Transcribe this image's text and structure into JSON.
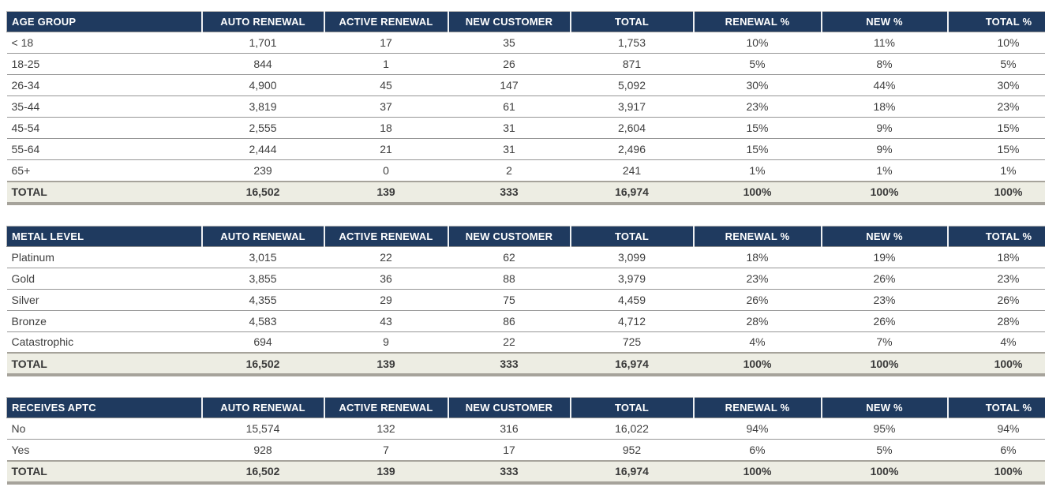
{
  "colors": {
    "header_bg": "#1F3A5F",
    "header_text": "#FFFFFF",
    "total_row_bg": "#EDEDE3",
    "total_row_border": "#A6A39B",
    "row_divider": "#969696",
    "body_text": "#3F3F3F"
  },
  "tables": [
    {
      "id": "age-group",
      "header": [
        "AGE GROUP",
        "AUTO RENEWAL",
        "ACTIVE RENEWAL",
        "NEW CUSTOMER",
        "TOTAL",
        "RENEWAL %",
        "NEW %",
        "TOTAL %"
      ],
      "rows": [
        [
          "< 18",
          "1,701",
          "17",
          "35",
          "1,753",
          "10%",
          "11%",
          "10%"
        ],
        [
          "18-25",
          "844",
          "1",
          "26",
          "871",
          "5%",
          "8%",
          "5%"
        ],
        [
          "26-34",
          "4,900",
          "45",
          "147",
          "5,092",
          "30%",
          "44%",
          "30%"
        ],
        [
          "35-44",
          "3,819",
          "37",
          "61",
          "3,917",
          "23%",
          "18%",
          "23%"
        ],
        [
          "45-54",
          "2,555",
          "18",
          "31",
          "2,604",
          "15%",
          "9%",
          "15%"
        ],
        [
          "55-64",
          "2,444",
          "21",
          "31",
          "2,496",
          "15%",
          "9%",
          "15%"
        ],
        [
          "65+",
          "239",
          "0",
          "2",
          "241",
          "1%",
          "1%",
          "1%"
        ]
      ],
      "total": [
        "TOTAL",
        "16,502",
        "139",
        "333",
        "16,974",
        "100%",
        "100%",
        "100%"
      ]
    },
    {
      "id": "metal-level",
      "header": [
        "METAL LEVEL",
        "AUTO RENEWAL",
        "ACTIVE RENEWAL",
        "NEW CUSTOMER",
        "TOTAL",
        "RENEWAL %",
        "NEW %",
        "TOTAL %"
      ],
      "rows": [
        [
          "Platinum",
          "3,015",
          "22",
          "62",
          "3,099",
          "18%",
          "19%",
          "18%"
        ],
        [
          "Gold",
          "3,855",
          "36",
          "88",
          "3,979",
          "23%",
          "26%",
          "23%"
        ],
        [
          "Silver",
          "4,355",
          "29",
          "75",
          "4,459",
          "26%",
          "23%",
          "26%"
        ],
        [
          "Bronze",
          "4,583",
          "43",
          "86",
          "4,712",
          "28%",
          "26%",
          "28%"
        ],
        [
          "Catastrophic",
          "694",
          "9",
          "22",
          "725",
          "4%",
          "7%",
          "4%"
        ]
      ],
      "total": [
        "TOTAL",
        "16,502",
        "139",
        "333",
        "16,974",
        "100%",
        "100%",
        "100%"
      ]
    },
    {
      "id": "receives-aptc",
      "header": [
        "RECEIVES APTC",
        "AUTO RENEWAL",
        "ACTIVE RENEWAL",
        "NEW CUSTOMER",
        "TOTAL",
        "RENEWAL %",
        "NEW %",
        "TOTAL %"
      ],
      "rows": [
        [
          "No",
          "15,574",
          "132",
          "316",
          "16,022",
          "94%",
          "95%",
          "94%"
        ],
        [
          "Yes",
          "928",
          "7",
          "17",
          "952",
          "6%",
          "5%",
          "6%"
        ]
      ],
      "total": [
        "TOTAL",
        "16,502",
        "139",
        "333",
        "16,974",
        "100%",
        "100%",
        "100%"
      ]
    }
  ]
}
